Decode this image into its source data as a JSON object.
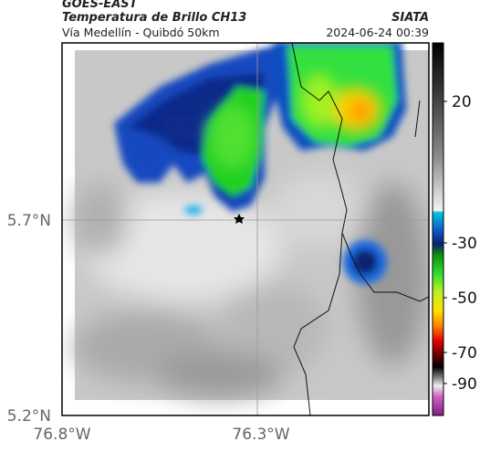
{
  "header": {
    "title": "GOES-EAST",
    "subtitle": "Temperatura de Brillo CH13",
    "route": "Vía Medellín - Quibdó 50km",
    "source": "SIATA",
    "timestamp": "2024-06-24 00:39"
  },
  "map": {
    "lat_labels": [
      "5.7°N",
      "5.2°N"
    ],
    "lon_labels": [
      "76.8°W",
      "76.3°W"
    ]
  },
  "colorbar": {
    "ticks": [
      20,
      -30,
      -50,
      -70,
      -90
    ]
  }
}
